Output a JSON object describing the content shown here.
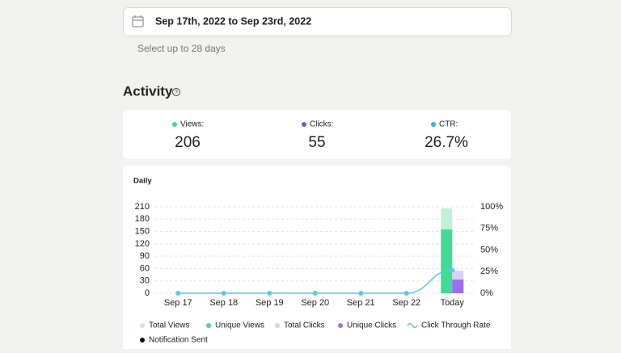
{
  "date_range": "Sep 17th, 2022 to Sep 23rd, 2022",
  "hint": "Select up to 28 days",
  "activity": {
    "title": "Activity",
    "stats": [
      {
        "label": "Views:",
        "value": 206,
        "color": "#3ed598"
      },
      {
        "label": "Clicks:",
        "value": 55,
        "color": "#7b4fd6"
      },
      {
        "label": "CTR:",
        "value": "26.7%",
        "color": "#29b6e8"
      }
    ]
  },
  "chart_data": {
    "type": "bar",
    "title": "Daily",
    "categories": [
      "Sep 17",
      "Sep 18",
      "Sep 19",
      "Sep 20",
      "Sep 21",
      "Sep 22",
      "Today"
    ],
    "series": [
      {
        "name": "Total Views",
        "color": "#bff0d9",
        "values": [
          0,
          0,
          0,
          0,
          0,
          0,
          206
        ]
      },
      {
        "name": "Unique Views",
        "color": "#3fdc96",
        "values": [
          0,
          0,
          0,
          0,
          0,
          0,
          155
        ]
      },
      {
        "name": "Total Clicks",
        "color": "#d9d2f5",
        "values": [
          0,
          0,
          0,
          0,
          0,
          0,
          55
        ]
      },
      {
        "name": "Unique Clicks",
        "color": "#9b6ef0",
        "values": [
          0,
          0,
          0,
          0,
          0,
          0,
          33
        ]
      },
      {
        "name": "Click Through Rate",
        "color": "#52cde6",
        "type": "line",
        "axis": "y2",
        "values": [
          0,
          0,
          0,
          0,
          0,
          0,
          26.7
        ]
      },
      {
        "name": "Notification Sent",
        "color": "#111111",
        "type": "marker",
        "values": [
          null,
          null,
          null,
          null,
          null,
          null,
          null
        ]
      }
    ],
    "ylim": [
      0,
      210
    ],
    "yticks": [
      0,
      30,
      60,
      90,
      120,
      150,
      180,
      210
    ],
    "y2lim": [
      0,
      100
    ],
    "y2ticks": [
      {
        "value": 0,
        "label": "0%"
      },
      {
        "value": 25,
        "label": "25%"
      },
      {
        "value": 50,
        "label": "50%"
      },
      {
        "value": 75,
        "label": "75%"
      },
      {
        "value": 100,
        "label": "100%"
      }
    ],
    "grid": true
  }
}
